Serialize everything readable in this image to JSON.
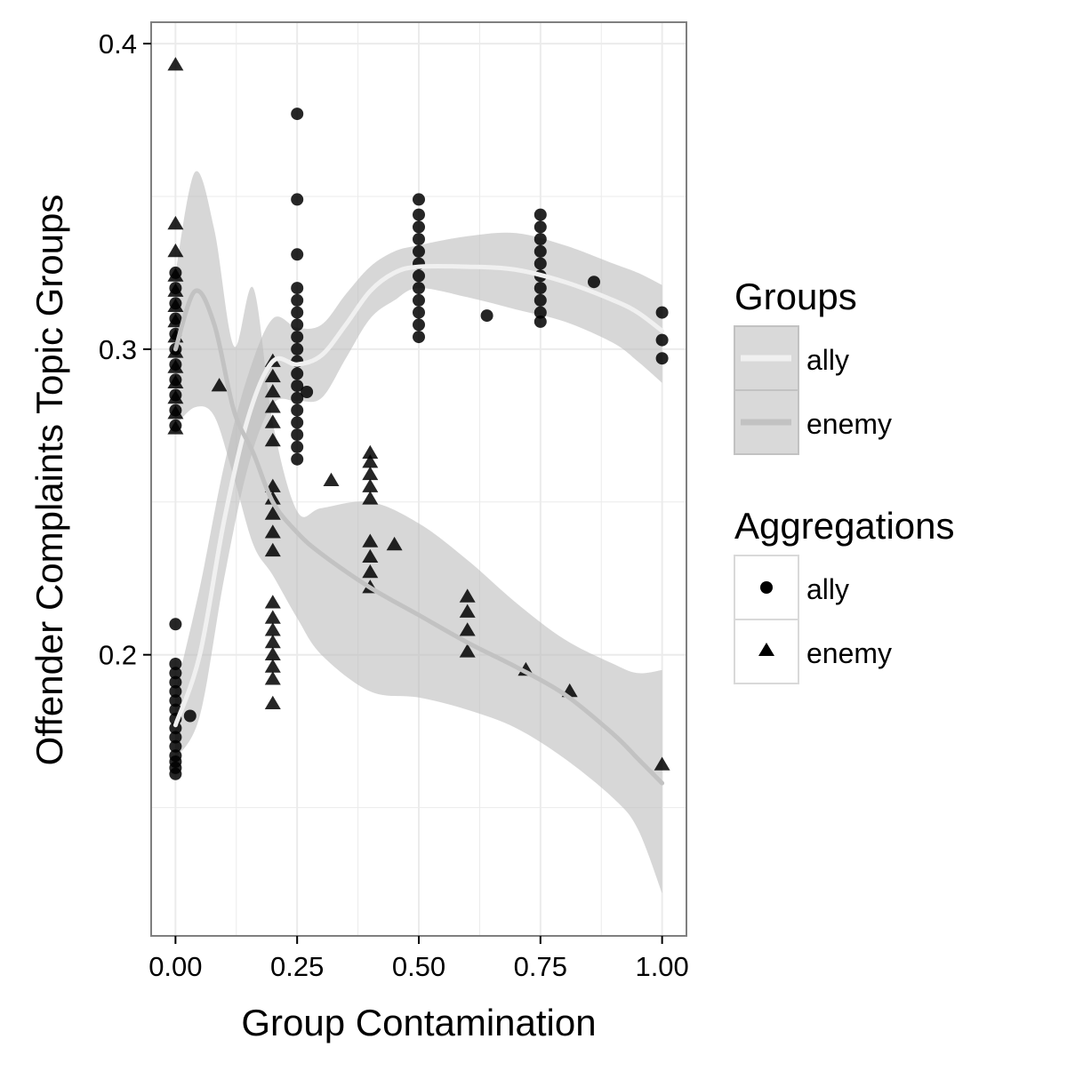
{
  "chart_data": {
    "type": "scatter",
    "xlabel": "Group Contamination",
    "ylabel": "Offender Complaints Topic Groups",
    "xlim": [
      -0.05,
      1.05
    ],
    "ylim": [
      0.108,
      0.407
    ],
    "x_ticks": [
      0.0,
      0.25,
      0.5,
      0.75,
      1.0
    ],
    "x_tick_labels": [
      "0.00",
      "0.25",
      "0.50",
      "0.75",
      "1.00"
    ],
    "y_ticks": [
      0.2,
      0.3,
      0.4
    ],
    "y_tick_labels": [
      "0.2",
      "0.3",
      "0.4"
    ],
    "grid": true,
    "legend_placement": "right",
    "colors": {
      "panel_border": "#7f7f7f",
      "grid": "#ebebeb",
      "ribbon": "#bdbdbd",
      "ally_line": "#f0f0f0",
      "enemy_line": "#c2c2c2",
      "points": "#000000"
    },
    "legends": {
      "groups": {
        "title": "Groups",
        "items": [
          "ally",
          "enemy"
        ]
      },
      "aggregations": {
        "title": "Aggregations",
        "items": [
          "ally",
          "enemy"
        ]
      }
    },
    "series": [
      {
        "name": "ally",
        "kind": "points",
        "shape": "circle",
        "points": [
          [
            0.0,
            0.161
          ],
          [
            0.0,
            0.163
          ],
          [
            0.0,
            0.165
          ],
          [
            0.0,
            0.167
          ],
          [
            0.0,
            0.17
          ],
          [
            0.0,
            0.173
          ],
          [
            0.0,
            0.176
          ],
          [
            0.0,
            0.179
          ],
          [
            0.0,
            0.182
          ],
          [
            0.0,
            0.185
          ],
          [
            0.0,
            0.188
          ],
          [
            0.0,
            0.191
          ],
          [
            0.0,
            0.194
          ],
          [
            0.0,
            0.197
          ],
          [
            0.0,
            0.21
          ],
          [
            0.03,
            0.18
          ],
          [
            0.0,
            0.275
          ],
          [
            0.0,
            0.28
          ],
          [
            0.0,
            0.285
          ],
          [
            0.0,
            0.29
          ],
          [
            0.0,
            0.295
          ],
          [
            0.0,
            0.3
          ],
          [
            0.0,
            0.305
          ],
          [
            0.0,
            0.31
          ],
          [
            0.0,
            0.315
          ],
          [
            0.0,
            0.32
          ],
          [
            0.0,
            0.325
          ],
          [
            0.25,
            0.264
          ],
          [
            0.25,
            0.268
          ],
          [
            0.25,
            0.272
          ],
          [
            0.25,
            0.276
          ],
          [
            0.25,
            0.28
          ],
          [
            0.25,
            0.284
          ],
          [
            0.25,
            0.288
          ],
          [
            0.25,
            0.292
          ],
          [
            0.25,
            0.296
          ],
          [
            0.25,
            0.3
          ],
          [
            0.25,
            0.304
          ],
          [
            0.25,
            0.308
          ],
          [
            0.25,
            0.312
          ],
          [
            0.25,
            0.316
          ],
          [
            0.25,
            0.32
          ],
          [
            0.25,
            0.331
          ],
          [
            0.25,
            0.349
          ],
          [
            0.25,
            0.377
          ],
          [
            0.27,
            0.286
          ],
          [
            0.5,
            0.304
          ],
          [
            0.5,
            0.308
          ],
          [
            0.5,
            0.312
          ],
          [
            0.5,
            0.316
          ],
          [
            0.5,
            0.32
          ],
          [
            0.5,
            0.324
          ],
          [
            0.5,
            0.328
          ],
          [
            0.5,
            0.332
          ],
          [
            0.5,
            0.336
          ],
          [
            0.5,
            0.34
          ],
          [
            0.5,
            0.344
          ],
          [
            0.5,
            0.349
          ],
          [
            0.64,
            0.311
          ],
          [
            0.75,
            0.309
          ],
          [
            0.75,
            0.312
          ],
          [
            0.75,
            0.316
          ],
          [
            0.75,
            0.32
          ],
          [
            0.75,
            0.324
          ],
          [
            0.75,
            0.328
          ],
          [
            0.75,
            0.332
          ],
          [
            0.75,
            0.336
          ],
          [
            0.75,
            0.34
          ],
          [
            0.75,
            0.344
          ],
          [
            0.86,
            0.322
          ],
          [
            1.0,
            0.297
          ],
          [
            1.0,
            0.303
          ],
          [
            1.0,
            0.312
          ]
        ]
      },
      {
        "name": "enemy",
        "kind": "points",
        "shape": "triangle",
        "points": [
          [
            0.0,
            0.393
          ],
          [
            0.0,
            0.341
          ],
          [
            0.0,
            0.332
          ],
          [
            0.0,
            0.274
          ],
          [
            0.0,
            0.279
          ],
          [
            0.0,
            0.284
          ],
          [
            0.0,
            0.289
          ],
          [
            0.0,
            0.294
          ],
          [
            0.0,
            0.299
          ],
          [
            0.0,
            0.304
          ],
          [
            0.0,
            0.309
          ],
          [
            0.0,
            0.314
          ],
          [
            0.0,
            0.319
          ],
          [
            0.0,
            0.324
          ],
          [
            0.09,
            0.288
          ],
          [
            0.2,
            0.184
          ],
          [
            0.2,
            0.192
          ],
          [
            0.2,
            0.196
          ],
          [
            0.2,
            0.2
          ],
          [
            0.2,
            0.204
          ],
          [
            0.2,
            0.208
          ],
          [
            0.2,
            0.212
          ],
          [
            0.2,
            0.217
          ],
          [
            0.2,
            0.234
          ],
          [
            0.2,
            0.24
          ],
          [
            0.2,
            0.246
          ],
          [
            0.2,
            0.251
          ],
          [
            0.2,
            0.255
          ],
          [
            0.2,
            0.27
          ],
          [
            0.2,
            0.276
          ],
          [
            0.2,
            0.281
          ],
          [
            0.2,
            0.286
          ],
          [
            0.2,
            0.291
          ],
          [
            0.2,
            0.296
          ],
          [
            0.32,
            0.257
          ],
          [
            0.4,
            0.222
          ],
          [
            0.4,
            0.227
          ],
          [
            0.4,
            0.232
          ],
          [
            0.4,
            0.237
          ],
          [
            0.4,
            0.251
          ],
          [
            0.4,
            0.255
          ],
          [
            0.4,
            0.259
          ],
          [
            0.4,
            0.263
          ],
          [
            0.4,
            0.266
          ],
          [
            0.45,
            0.236
          ],
          [
            0.6,
            0.201
          ],
          [
            0.6,
            0.208
          ],
          [
            0.6,
            0.214
          ],
          [
            0.6,
            0.219
          ],
          [
            0.72,
            0.195
          ],
          [
            0.81,
            0.188
          ],
          [
            1.0,
            0.164
          ]
        ]
      },
      {
        "name": "ally",
        "kind": "smooth",
        "x": [
          0.0,
          0.05,
          0.1,
          0.15,
          0.2,
          0.25,
          0.3,
          0.35,
          0.4,
          0.45,
          0.5,
          0.6,
          0.7,
          0.8,
          0.9,
          0.95,
          1.0
        ],
        "y": [
          0.177,
          0.2,
          0.244,
          0.278,
          0.296,
          0.295,
          0.298,
          0.308,
          0.319,
          0.325,
          0.327,
          0.327,
          0.326,
          0.322,
          0.316,
          0.312,
          0.306
        ],
        "lower": [
          0.166,
          0.18,
          0.225,
          0.262,
          0.282,
          0.283,
          0.284,
          0.297,
          0.31,
          0.316,
          0.32,
          0.317,
          0.313,
          0.309,
          0.302,
          0.296,
          0.289
        ],
        "upper": [
          0.188,
          0.222,
          0.262,
          0.292,
          0.31,
          0.307,
          0.308,
          0.318,
          0.327,
          0.332,
          0.334,
          0.337,
          0.338,
          0.334,
          0.328,
          0.325,
          0.321
        ]
      },
      {
        "name": "enemy",
        "kind": "smooth",
        "x": [
          0.0,
          0.04,
          0.08,
          0.12,
          0.16,
          0.2,
          0.25,
          0.3,
          0.4,
          0.5,
          0.6,
          0.7,
          0.8,
          0.9,
          0.95,
          1.0
        ],
        "y": [
          0.3,
          0.319,
          0.308,
          0.28,
          0.266,
          0.25,
          0.24,
          0.233,
          0.222,
          0.213,
          0.204,
          0.196,
          0.187,
          0.174,
          0.166,
          0.158
        ],
        "lower": [
          0.275,
          0.281,
          0.278,
          0.258,
          0.236,
          0.226,
          0.212,
          0.2,
          0.188,
          0.186,
          0.182,
          0.176,
          0.166,
          0.153,
          0.143,
          0.122
        ],
        "upper": [
          0.325,
          0.358,
          0.339,
          0.301,
          0.32,
          0.276,
          0.247,
          0.248,
          0.25,
          0.243,
          0.231,
          0.217,
          0.205,
          0.197,
          0.194,
          0.195
        ]
      }
    ]
  }
}
